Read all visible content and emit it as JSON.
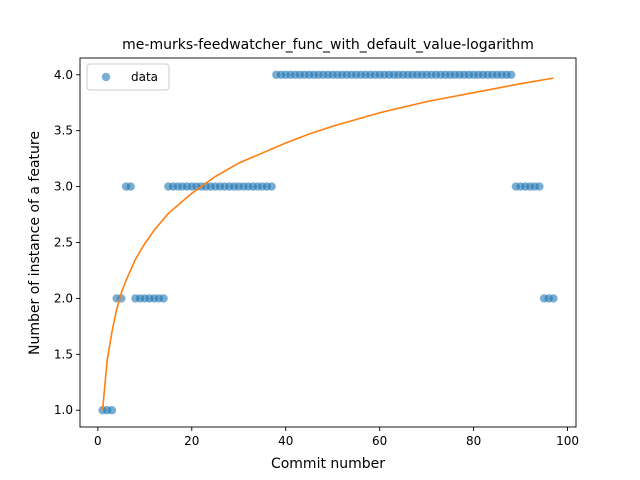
{
  "chart_data": {
    "type": "scatter",
    "title": "me-murks-feedwatcher_func_with_default_value-logarithm",
    "xlabel": "Commit number",
    "ylabel": "Number of instance of a feature",
    "xlim": [
      -3.8,
      101.8
    ],
    "ylim": [
      0.85,
      4.15
    ],
    "x_ticks": [
      0,
      20,
      40,
      60,
      80,
      100
    ],
    "y_ticks": [
      1.0,
      1.5,
      2.0,
      2.5,
      3.0,
      3.5,
      4.0
    ],
    "grid": false,
    "legend": {
      "location": "upper left",
      "entries": [
        "data"
      ]
    },
    "colors": {
      "scatter": "#1f77b4",
      "fit": "#ff7f0e"
    },
    "series": [
      {
        "name": "data",
        "kind": "scatter",
        "points": [
          [
            1,
            1
          ],
          [
            2,
            1
          ],
          [
            3,
            1
          ],
          [
            4,
            2
          ],
          [
            5,
            2
          ],
          [
            6,
            3
          ],
          [
            7,
            3
          ],
          [
            8,
            2
          ],
          [
            9,
            2
          ],
          [
            10,
            2
          ],
          [
            11,
            2
          ],
          [
            12,
            2
          ],
          [
            13,
            2
          ],
          [
            14,
            2
          ],
          [
            15,
            3
          ],
          [
            16,
            3
          ],
          [
            17,
            3
          ],
          [
            18,
            3
          ],
          [
            19,
            3
          ],
          [
            20,
            3
          ],
          [
            21,
            3
          ],
          [
            22,
            3
          ],
          [
            23,
            3
          ],
          [
            24,
            3
          ],
          [
            25,
            3
          ],
          [
            26,
            3
          ],
          [
            27,
            3
          ],
          [
            28,
            3
          ],
          [
            29,
            3
          ],
          [
            30,
            3
          ],
          [
            31,
            3
          ],
          [
            32,
            3
          ],
          [
            33,
            3
          ],
          [
            34,
            3
          ],
          [
            35,
            3
          ],
          [
            36,
            3
          ],
          [
            37,
            3
          ],
          [
            38,
            4
          ],
          [
            39,
            4
          ],
          [
            40,
            4
          ],
          [
            41,
            4
          ],
          [
            42,
            4
          ],
          [
            43,
            4
          ],
          [
            44,
            4
          ],
          [
            45,
            4
          ],
          [
            46,
            4
          ],
          [
            47,
            4
          ],
          [
            48,
            4
          ],
          [
            49,
            4
          ],
          [
            50,
            4
          ],
          [
            51,
            4
          ],
          [
            52,
            4
          ],
          [
            53,
            4
          ],
          [
            54,
            4
          ],
          [
            55,
            4
          ],
          [
            56,
            4
          ],
          [
            57,
            4
          ],
          [
            58,
            4
          ],
          [
            59,
            4
          ],
          [
            60,
            4
          ],
          [
            61,
            4
          ],
          [
            62,
            4
          ],
          [
            63,
            4
          ],
          [
            64,
            4
          ],
          [
            65,
            4
          ],
          [
            66,
            4
          ],
          [
            67,
            4
          ],
          [
            68,
            4
          ],
          [
            69,
            4
          ],
          [
            70,
            4
          ],
          [
            71,
            4
          ],
          [
            72,
            4
          ],
          [
            73,
            4
          ],
          [
            74,
            4
          ],
          [
            75,
            4
          ],
          [
            76,
            4
          ],
          [
            77,
            4
          ],
          [
            78,
            4
          ],
          [
            79,
            4
          ],
          [
            80,
            4
          ],
          [
            81,
            4
          ],
          [
            82,
            4
          ],
          [
            83,
            4
          ],
          [
            84,
            4
          ],
          [
            85,
            4
          ],
          [
            86,
            4
          ],
          [
            87,
            4
          ],
          [
            88,
            4
          ],
          [
            89,
            3
          ],
          [
            90,
            3
          ],
          [
            91,
            3
          ],
          [
            92,
            3
          ],
          [
            93,
            3
          ],
          [
            94,
            3
          ],
          [
            95,
            2
          ],
          [
            96,
            2
          ],
          [
            97,
            2
          ]
        ]
      },
      {
        "kind": "line",
        "fit": "logarithmic",
        "points": [
          [
            1,
            1.0
          ],
          [
            2,
            1.45
          ],
          [
            3,
            1.7
          ],
          [
            4,
            1.9
          ],
          [
            5,
            2.05
          ],
          [
            6,
            2.16
          ],
          [
            8,
            2.35
          ],
          [
            10,
            2.49
          ],
          [
            12,
            2.61
          ],
          [
            15,
            2.76
          ],
          [
            20,
            2.94
          ],
          [
            25,
            3.09
          ],
          [
            30,
            3.21
          ],
          [
            35,
            3.3
          ],
          [
            40,
            3.39
          ],
          [
            45,
            3.47
          ],
          [
            50,
            3.54
          ],
          [
            55,
            3.6
          ],
          [
            60,
            3.66
          ],
          [
            65,
            3.71
          ],
          [
            70,
            3.76
          ],
          [
            75,
            3.8
          ],
          [
            80,
            3.84
          ],
          [
            85,
            3.88
          ],
          [
            90,
            3.92
          ],
          [
            97,
            3.97
          ]
        ]
      }
    ]
  }
}
